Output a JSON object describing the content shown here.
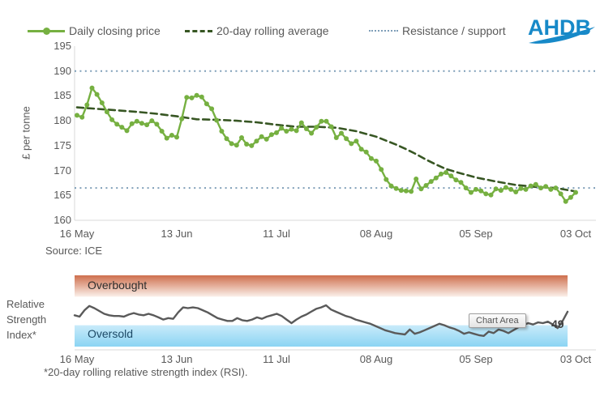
{
  "logo": {
    "text": "AHDB"
  },
  "colors": {
    "price_line": "#76B041",
    "rolling_avg": "#375623",
    "reference": "#7E9EB8",
    "rsi_line": "#5A5A5A",
    "axis": "#D9D9D9",
    "text": "#595959",
    "logo_blue": "#1789C8",
    "overbought_top": "#CE6F4D",
    "overbought_bottom": "#FBF0EA",
    "oversold_top": "#C9EBFA",
    "oversold_bottom": "#8BD4F3",
    "overbought_text": "#2E2E2E",
    "oversold_text": "#1C4966"
  },
  "chart_data": [
    {
      "type": "line",
      "panel": "price",
      "ylabel": "£ per tonne",
      "ylim": [
        160,
        195
      ],
      "y_ticks": [
        195,
        190,
        185,
        180,
        175,
        170,
        165,
        160
      ],
      "x_tick_labels": [
        "16 May",
        "13 Jun",
        "11 Jul",
        "08 Aug",
        "05 Sep",
        "03 Oct"
      ],
      "x_tick_indices": [
        0,
        20,
        40,
        60,
        80,
        100
      ],
      "grid": false,
      "legend_position": "top",
      "source": "Source: ICE",
      "reference_lines": {
        "label": "Resistance / support",
        "resistance": 190,
        "support": 166.5
      },
      "series": [
        {
          "name": "Daily closing price",
          "style": "solid-with-markers",
          "values": [
            181.1,
            180.7,
            183.2,
            186.6,
            185.3,
            183.6,
            181.8,
            180.2,
            179.3,
            178.7,
            178.0,
            179.4,
            179.9,
            179.5,
            179.2,
            180.0,
            179.3,
            177.9,
            176.5,
            177.1,
            176.7,
            180.4,
            184.7,
            184.6,
            185.1,
            184.8,
            183.4,
            182.4,
            180.1,
            177.9,
            176.4,
            175.4,
            175.1,
            176.6,
            175.3,
            175.0,
            175.9,
            176.8,
            176.3,
            177.2,
            177.6,
            178.5,
            177.9,
            178.3,
            178.0,
            179.6,
            178.4,
            177.5,
            178.7,
            179.9,
            179.9,
            178.8,
            176.6,
            177.5,
            176.4,
            175.4,
            175.9,
            174.3,
            173.7,
            172.4,
            171.9,
            170.2,
            168.2,
            166.9,
            166.4,
            166.0,
            165.9,
            165.8,
            168.3,
            166.3,
            167.0,
            167.8,
            168.5,
            169.3,
            169.6,
            168.9,
            168.1,
            167.6,
            166.5,
            165.6,
            166.2,
            165.9,
            165.3,
            165.1,
            166.3,
            166.0,
            166.6,
            166.2,
            165.7,
            166.4,
            166.2,
            166.9,
            167.2,
            166.5,
            166.8,
            166.2,
            166.5,
            165.3,
            163.8,
            164.6,
            165.6
          ]
        },
        {
          "name": "20-day rolling average",
          "style": "dashed",
          "points": [
            [
              0,
              182.7
            ],
            [
              4,
              182.4
            ],
            [
              8,
              182.1
            ],
            [
              12,
              181.8
            ],
            [
              16,
              181.4
            ],
            [
              20,
              180.9
            ],
            [
              24,
              180.3
            ],
            [
              28,
              180.2
            ],
            [
              32,
              180.0
            ],
            [
              36,
              179.7
            ],
            [
              40,
              179.2
            ],
            [
              44,
              178.8
            ],
            [
              48,
              178.8
            ],
            [
              52,
              178.6
            ],
            [
              56,
              177.9
            ],
            [
              60,
              176.8
            ],
            [
              62,
              176.0
            ],
            [
              64,
              175.2
            ],
            [
              66,
              174.3
            ],
            [
              68,
              173.3
            ],
            [
              70,
              172.2
            ],
            [
              72,
              171.2
            ],
            [
              74,
              170.3
            ],
            [
              76,
              169.7
            ],
            [
              80,
              168.6
            ],
            [
              84,
              167.8
            ],
            [
              88,
              167.1
            ],
            [
              92,
              166.7
            ],
            [
              96,
              166.5
            ],
            [
              100,
              165.8
            ]
          ]
        }
      ]
    },
    {
      "type": "line",
      "panel": "rsi",
      "label_lines": [
        "Relative",
        "Strength",
        "Index*"
      ],
      "ylim": [
        0,
        100
      ],
      "overbought_min": 70,
      "oversold_max": 30,
      "overbought_label": "Overbought",
      "oversold_label": "Oversold",
      "tooltip": "Chart Area",
      "last_value_label": "49",
      "footnote": "*20-day rolling relative strength index (RSI).",
      "x_tick_labels": [
        "16 May",
        "13 Jun",
        "11 Jul",
        "08 Aug",
        "05 Sep",
        "03 Oct"
      ],
      "x_tick_indices": [
        0,
        20,
        40,
        60,
        80,
        100
      ],
      "values": [
        44,
        42,
        51,
        57,
        54,
        50,
        46,
        44,
        43,
        43,
        42,
        45,
        47,
        45,
        44,
        46,
        44,
        41,
        38,
        40,
        39,
        48,
        55,
        54,
        55,
        54,
        51,
        48,
        44,
        40,
        38,
        36,
        36,
        40,
        37,
        36,
        38,
        41,
        39,
        42,
        44,
        46,
        43,
        38,
        33,
        38,
        42,
        45,
        49,
        53,
        55,
        58,
        52,
        49,
        46,
        43,
        41,
        38,
        36,
        34,
        32,
        29,
        26,
        23,
        21,
        19,
        18,
        17,
        24,
        18,
        20,
        23,
        26,
        29,
        32,
        30,
        27,
        25,
        22,
        18,
        20,
        18,
        16,
        15,
        21,
        19,
        24,
        22,
        19,
        23,
        27,
        30,
        33,
        31,
        34,
        33,
        35,
        31,
        26,
        36,
        49
      ]
    }
  ]
}
